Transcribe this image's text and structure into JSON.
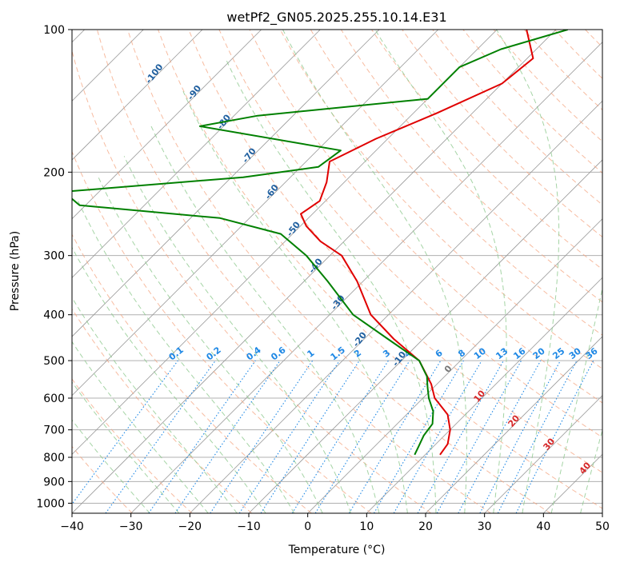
{
  "chart_data": {
    "type": "line",
    "title": "wetPf2_GN05.2025.255.10.14.E31",
    "xlabel": "Temperature (°C)",
    "ylabel": "Pressure (hPa)",
    "xlim": [
      -40,
      50
    ],
    "ylim": [
      1050,
      100
    ],
    "y_scale": "log",
    "grid": true,
    "x_ticks": [
      -40,
      -30,
      -20,
      -10,
      0,
      10,
      20,
      30,
      40,
      50
    ],
    "y_ticks": [
      100,
      200,
      300,
      400,
      500,
      600,
      700,
      800,
      900,
      1000
    ],
    "series": [
      {
        "color": "#e00000",
        "points": [
          {
            "p": 100,
            "t": -45
          },
          {
            "p": 115,
            "t": -39
          },
          {
            "p": 130,
            "t": -40
          },
          {
            "p": 150,
            "t": -46
          },
          {
            "p": 170,
            "t": -52
          },
          {
            "p": 190,
            "t": -56
          },
          {
            "p": 210,
            "t": -53
          },
          {
            "p": 230,
            "t": -51
          },
          {
            "p": 245,
            "t": -52
          },
          {
            "p": 260,
            "t": -49
          },
          {
            "p": 280,
            "t": -44
          },
          {
            "p": 300,
            "t": -38
          },
          {
            "p": 340,
            "t": -31
          },
          {
            "p": 400,
            "t": -23
          },
          {
            "p": 450,
            "t": -15
          },
          {
            "p": 500,
            "t": -7
          },
          {
            "p": 560,
            "t": -1
          },
          {
            "p": 600,
            "t": 2
          },
          {
            "p": 650,
            "t": 7
          },
          {
            "p": 700,
            "t": 10
          },
          {
            "p": 750,
            "t": 12
          },
          {
            "p": 790,
            "t": 12.5
          }
        ]
      },
      {
        "color": "#008000",
        "points": [
          {
            "p": 100,
            "t": -38
          },
          {
            "p": 110,
            "t": -46
          },
          {
            "p": 120,
            "t": -50
          },
          {
            "p": 140,
            "t": -50
          },
          {
            "p": 152,
            "t": -76
          },
          {
            "p": 160,
            "t": -84
          },
          {
            "p": 180,
            "t": -56
          },
          {
            "p": 195,
            "t": -57
          },
          {
            "p": 205,
            "t": -68
          },
          {
            "p": 220,
            "t": -96
          },
          {
            "p": 235,
            "t": -91
          },
          {
            "p": 250,
            "t": -65
          },
          {
            "p": 270,
            "t": -52
          },
          {
            "p": 300,
            "t": -44
          },
          {
            "p": 340,
            "t": -36
          },
          {
            "p": 400,
            "t": -26
          },
          {
            "p": 450,
            "t": -16
          },
          {
            "p": 500,
            "t": -7
          },
          {
            "p": 540,
            "t": -3
          },
          {
            "p": 570,
            "t": -1
          },
          {
            "p": 600,
            "t": 1
          },
          {
            "p": 640,
            "t": 4
          },
          {
            "p": 680,
            "t": 6
          },
          {
            "p": 720,
            "t": 6.5
          },
          {
            "p": 760,
            "t": 7.5
          },
          {
            "p": 790,
            "t": 8.2
          }
        ]
      }
    ],
    "temperature_labels": [
      "-100",
      "-90",
      "-80",
      "-70",
      "-60",
      "-50",
      "-40",
      "-30",
      "-20",
      "-10"
    ],
    "moist_adiabat_labels": [
      "0",
      "10",
      "20",
      "30",
      "40"
    ],
    "mixing_ratio_labels": [
      "0.1",
      "0.2",
      "0.4",
      "0.6",
      "1",
      "1.5",
      "2",
      "3",
      "4",
      "6",
      "8",
      "10",
      "13",
      "16",
      "20",
      "25",
      "30",
      "36"
    ],
    "mixing_ratio_values": [
      0.1,
      0.2,
      0.4,
      0.6,
      1,
      1.5,
      2,
      3,
      4,
      6,
      8,
      10,
      13,
      16,
      20,
      25,
      30,
      36
    ],
    "colors": {
      "temperature_line": "#e00000",
      "dewpoint_line": "#008000",
      "isotherm_label": "#1f5f9f",
      "mixing_ratio": "#1e88e5",
      "moist_adiabat_label": "#d62728",
      "dry_adiabat": "#f4a582",
      "moist_adiabat": "#8fc98f",
      "isotherm": "#999999"
    }
  }
}
